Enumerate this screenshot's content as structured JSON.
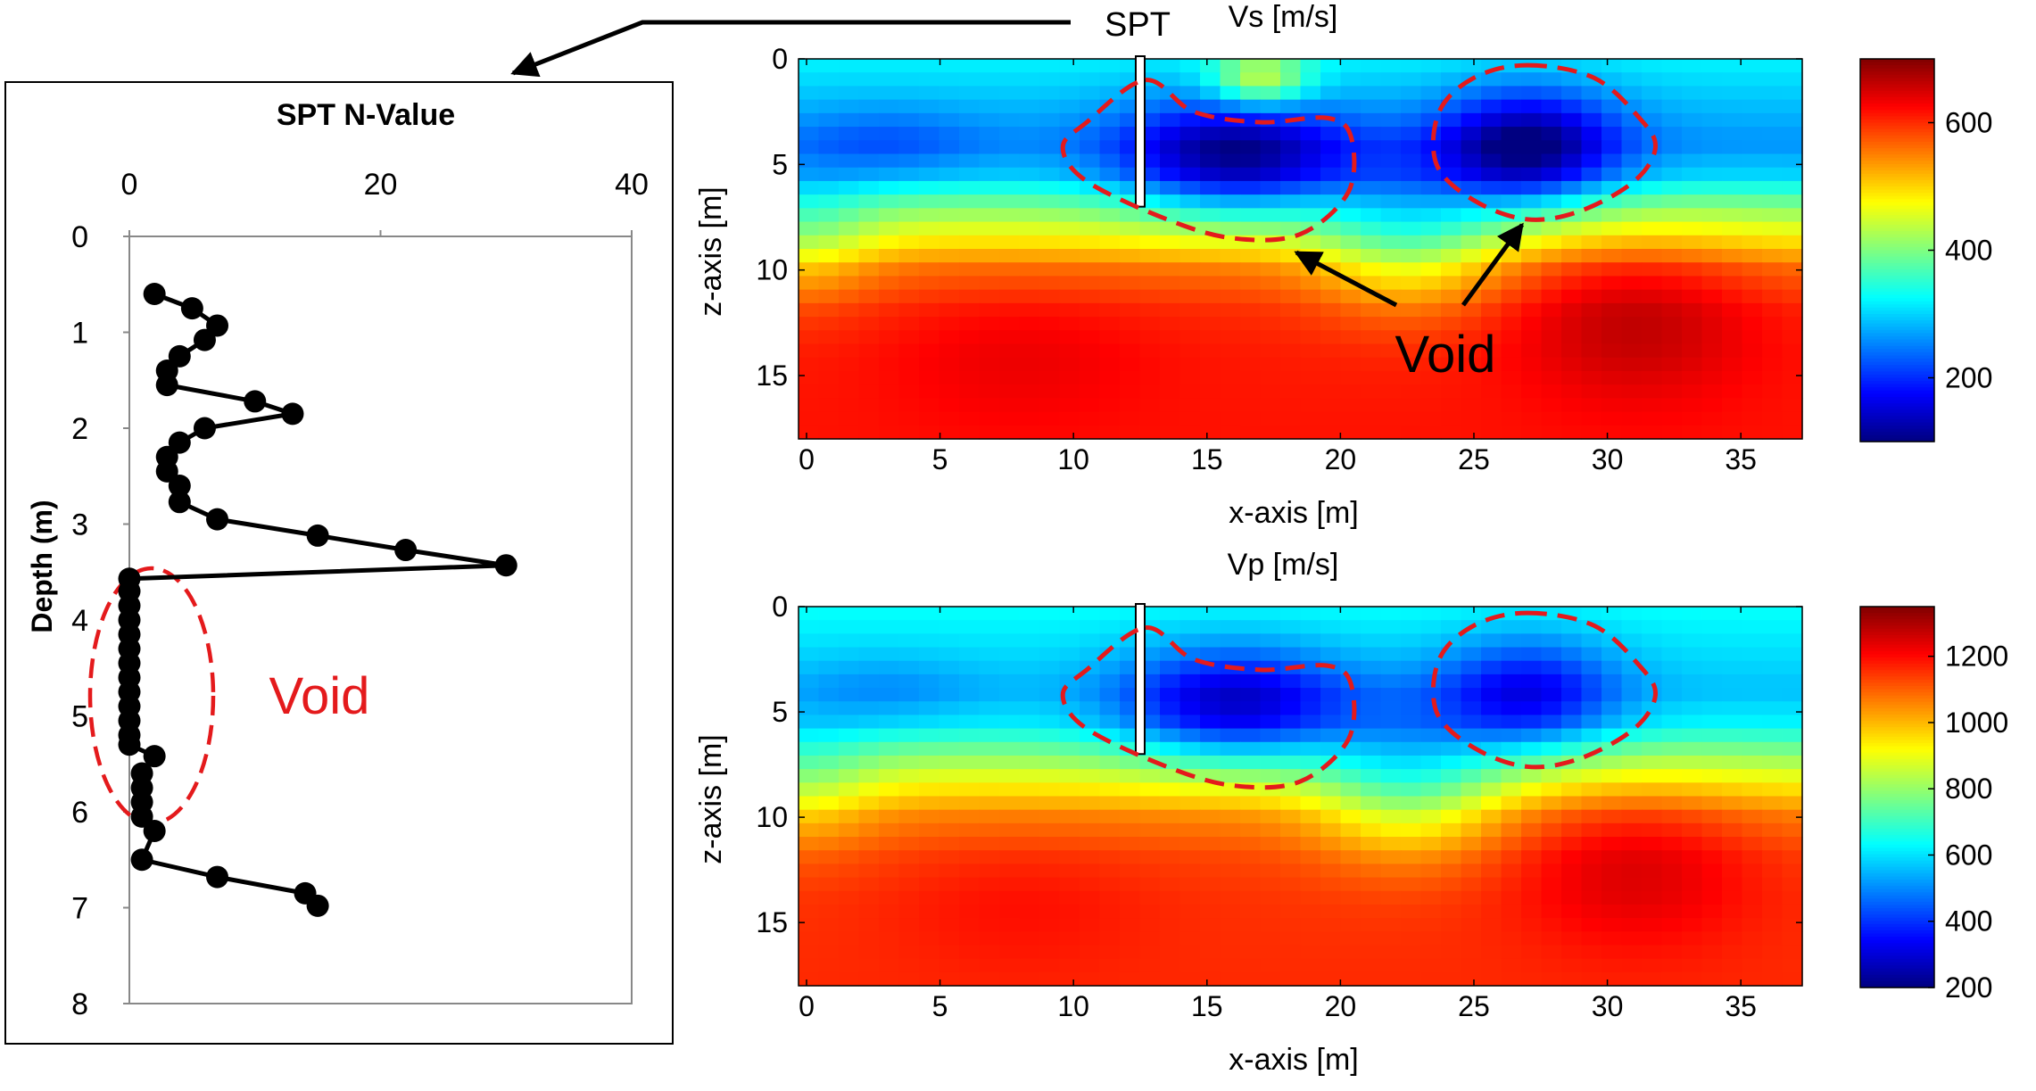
{
  "annotation": {
    "spt_label": "SPT"
  },
  "chart_data": [
    {
      "id": "spt",
      "type": "line",
      "title": "SPT N-Value",
      "xlabel": "",
      "ylabel": "Depth (m)",
      "xlim": [
        0,
        40
      ],
      "ylim": [
        0,
        8
      ],
      "xticks": [
        0,
        20,
        40
      ],
      "yticks": [
        0,
        1,
        2,
        3,
        4,
        5,
        6,
        7,
        8
      ],
      "grid": false,
      "x_axis_position": "top",
      "y_inverted": true,
      "series": [
        {
          "name": "SPT N-Value",
          "points": [
            [
              2,
              0.6
            ],
            [
              5,
              0.75
            ],
            [
              7,
              0.93
            ],
            [
              6,
              1.08
            ],
            [
              4,
              1.25
            ],
            [
              3,
              1.4
            ],
            [
              3,
              1.55
            ],
            [
              10,
              1.72
            ],
            [
              13,
              1.85
            ],
            [
              6,
              2.0
            ],
            [
              4,
              2.15
            ],
            [
              3,
              2.3
            ],
            [
              3,
              2.45
            ],
            [
              4,
              2.6
            ],
            [
              4,
              2.77
            ],
            [
              7,
              2.95
            ],
            [
              15,
              3.12
            ],
            [
              22,
              3.27
            ],
            [
              30,
              3.43
            ],
            [
              0,
              3.57
            ],
            [
              0,
              3.7
            ],
            [
              0,
              3.85
            ],
            [
              0,
              4.0
            ],
            [
              0,
              4.15
            ],
            [
              0,
              4.3
            ],
            [
              0,
              4.45
            ],
            [
              0,
              4.6
            ],
            [
              0,
              4.75
            ],
            [
              0,
              4.9
            ],
            [
              0,
              5.05
            ],
            [
              0,
              5.2
            ],
            [
              0,
              5.3
            ],
            [
              2,
              5.42
            ],
            [
              1,
              5.6
            ],
            [
              1,
              5.75
            ],
            [
              1,
              5.9
            ],
            [
              1,
              6.05
            ],
            [
              2,
              6.2
            ],
            [
              1,
              6.5
            ],
            [
              7,
              6.68
            ],
            [
              14,
              6.85
            ],
            [
              15,
              6.98
            ]
          ]
        }
      ],
      "annotations": [
        {
          "text": "Void",
          "color": "#e41a1c"
        }
      ]
    },
    {
      "id": "vs",
      "type": "heatmap",
      "title": "Vs [m/s]",
      "xlabel": "x-axis [m]",
      "ylabel": "z-axis [m]",
      "xlim": [
        -0.3,
        37.3
      ],
      "ylim": [
        0,
        18
      ],
      "xticks": [
        0,
        5,
        10,
        15,
        20,
        25,
        30,
        35
      ],
      "yticks": [
        0,
        5,
        10,
        15
      ],
      "colorbar": {
        "min": 100,
        "max": 700,
        "ticks": [
          200,
          400,
          600
        ],
        "colormap": "jet"
      },
      "field": {
        "background": [
          {
            "z": 0,
            "value": 320
          },
          {
            "z": 2,
            "value": 290
          },
          {
            "z": 4,
            "value": 260
          },
          {
            "z": 5.5,
            "value": 300
          },
          {
            "z": 7,
            "value": 400
          },
          {
            "z": 8.5,
            "value": 480
          },
          {
            "z": 10,
            "value": 560
          },
          {
            "z": 12,
            "value": 600
          },
          {
            "z": 14,
            "value": 610
          },
          {
            "z": 18,
            "value": 615
          }
        ],
        "anomalies": [
          {
            "x": 16,
            "z": 4.8,
            "rx": 4.2,
            "rz": 2.8,
            "delta": -170
          },
          {
            "x": 27,
            "z": 4.3,
            "rx": 3.3,
            "rz": 2.8,
            "delta": -180
          },
          {
            "x": 3,
            "z": 4,
            "rx": 3.5,
            "rz": 1.8,
            "delta": -40
          },
          {
            "x": 17,
            "z": 1,
            "rx": 1.8,
            "rz": 1.3,
            "delta": 150
          },
          {
            "x": 22.5,
            "z": 8.5,
            "rx": 3.5,
            "rz": 3.5,
            "delta": -110
          },
          {
            "x": 0,
            "z": 8.5,
            "rx": 2.5,
            "rz": 3,
            "delta": -60
          },
          {
            "x": 31,
            "z": 12,
            "rx": 4.5,
            "rz": 4,
            "delta": 60
          },
          {
            "x": 8,
            "z": 14,
            "rx": 5,
            "rz": 3.5,
            "delta": 25
          }
        ]
      },
      "spt_x": 12.5,
      "spt_depth": 7,
      "voids": [
        [
          [
            12.7,
            1.0
          ],
          [
            14.5,
            2.5
          ],
          [
            17.0,
            3.0
          ],
          [
            19.5,
            2.8
          ],
          [
            20.4,
            3.7
          ],
          [
            20.3,
            6.3
          ],
          [
            18.5,
            8.3
          ],
          [
            16.0,
            8.5
          ],
          [
            13.5,
            7.6
          ],
          [
            10.5,
            5.8
          ],
          [
            9.6,
            4.2
          ],
          [
            10.5,
            3.0
          ]
        ],
        [
          [
            27.0,
            0.3
          ],
          [
            29.5,
            0.9
          ],
          [
            31.2,
            2.8
          ],
          [
            31.8,
            4.2
          ],
          [
            31.0,
            5.8
          ],
          [
            29.0,
            7.2
          ],
          [
            27.0,
            7.6
          ],
          [
            25.0,
            6.7
          ],
          [
            23.6,
            5.0
          ],
          [
            23.7,
            2.5
          ],
          [
            25.0,
            0.9
          ]
        ]
      ],
      "annotations": [
        {
          "text": "Void",
          "color": "#000000"
        }
      ]
    },
    {
      "id": "vp",
      "type": "heatmap",
      "title": "Vp [m/s]",
      "xlabel": "x-axis [m]",
      "ylabel": "z-axis [m]",
      "xlim": [
        -0.3,
        37.3
      ],
      "ylim": [
        0,
        18
      ],
      "xticks": [
        0,
        5,
        10,
        15,
        20,
        25,
        30,
        35
      ],
      "yticks": [
        0,
        5,
        10,
        15
      ],
      "colorbar": {
        "min": 200,
        "max": 1350,
        "ticks": [
          200,
          400,
          600,
          800,
          1000,
          1200
        ],
        "colormap": "jet"
      },
      "field": {
        "background": [
          {
            "z": 0,
            "value": 640
          },
          {
            "z": 2,
            "value": 600
          },
          {
            "z": 4,
            "value": 560
          },
          {
            "z": 5.5,
            "value": 620
          },
          {
            "z": 7,
            "value": 780
          },
          {
            "z": 8.5,
            "value": 930
          },
          {
            "z": 10,
            "value": 1060
          },
          {
            "z": 12,
            "value": 1130
          },
          {
            "z": 14,
            "value": 1150
          },
          {
            "z": 18,
            "value": 1160
          }
        ],
        "anomalies": [
          {
            "x": 16,
            "z": 4.8,
            "rx": 4.2,
            "rz": 2.8,
            "delta": -300
          },
          {
            "x": 27,
            "z": 4.3,
            "rx": 3.3,
            "rz": 2.8,
            "delta": -250
          },
          {
            "x": 3,
            "z": 4,
            "rx": 3.5,
            "rz": 1.8,
            "delta": -60
          },
          {
            "x": 22.5,
            "z": 8.5,
            "rx": 3.5,
            "rz": 3.5,
            "delta": -220
          },
          {
            "x": 0,
            "z": 8.5,
            "rx": 2.5,
            "rz": 3,
            "delta": -100
          },
          {
            "x": 31,
            "z": 12,
            "rx": 4.5,
            "rz": 4,
            "delta": 110
          },
          {
            "x": 8,
            "z": 14,
            "rx": 5,
            "rz": 3.5,
            "delta": 40
          }
        ]
      },
      "spt_x": 12.5,
      "spt_depth": 7,
      "voids": [
        [
          [
            12.7,
            1.0
          ],
          [
            14.5,
            2.5
          ],
          [
            17.0,
            3.0
          ],
          [
            19.5,
            2.8
          ],
          [
            20.4,
            3.7
          ],
          [
            20.3,
            6.3
          ],
          [
            18.5,
            8.3
          ],
          [
            16.0,
            8.5
          ],
          [
            13.5,
            7.6
          ],
          [
            10.5,
            5.8
          ],
          [
            9.6,
            4.2
          ],
          [
            10.5,
            3.0
          ]
        ],
        [
          [
            27.0,
            0.3
          ],
          [
            29.5,
            0.9
          ],
          [
            31.2,
            2.8
          ],
          [
            31.8,
            4.2
          ],
          [
            31.0,
            5.8
          ],
          [
            29.0,
            7.2
          ],
          [
            27.0,
            7.6
          ],
          [
            25.0,
            6.7
          ],
          [
            23.6,
            5.0
          ],
          [
            23.7,
            2.5
          ],
          [
            25.0,
            0.9
          ]
        ]
      ],
      "annotations": []
    }
  ]
}
